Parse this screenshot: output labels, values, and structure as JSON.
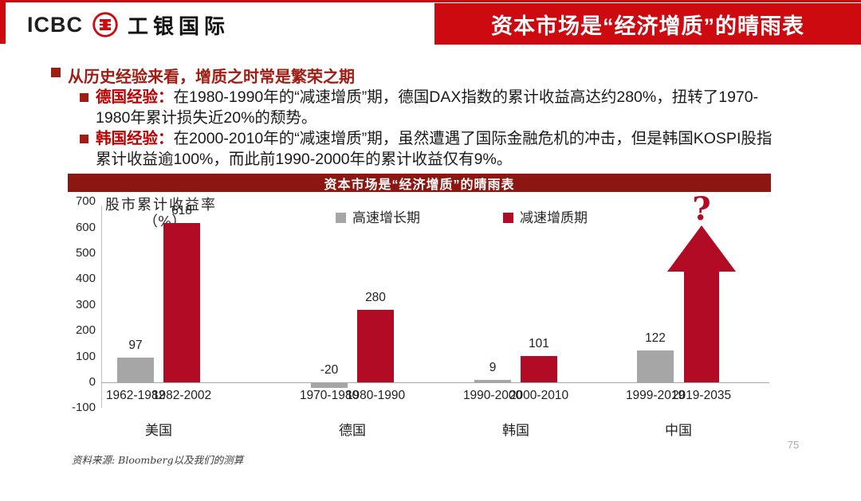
{
  "header": {
    "logo_icbc": "ICBC",
    "logo_cn": "工银国际",
    "banner_title": "资本市场是“经济增质”的晴雨表"
  },
  "bullets": {
    "main": "从历史经验来看，增质之时常是繁荣之期",
    "items": [
      {
        "lead": "德国经验：",
        "text": "在1980-1990年的“减速增质”期，德国DAX指数的累计收益高达约280%，扭转了1970-1980年累计损失近20%的颓势。"
      },
      {
        "lead": "韩国经验：",
        "text": "在2000-2010年的“减速增质”期，虽然遭遇了国际金融危机的冲击，但是韩国KOSPI股指累计收益逾100%，而此前1990-2000年的累计收益仅有9%。"
      }
    ]
  },
  "chart_data": {
    "type": "bar",
    "title": "资本市场是“经济增质”的晴雨表",
    "ylabel_line1": "股市累计收益率",
    "ylabel_line2": "（%）",
    "ylim": [
      -100,
      700
    ],
    "yticks": [
      700,
      600,
      500,
      400,
      300,
      200,
      100,
      0,
      -100
    ],
    "grid": false,
    "legend_position": "top",
    "legend": [
      {
        "name": "高速增长期",
        "color": "#a6a6a6"
      },
      {
        "name": "减速增质期",
        "color": "#b20b26"
      }
    ],
    "groups": [
      {
        "country": "美国",
        "bars": [
          {
            "period": "1962-1982",
            "series": "高速增长期",
            "value": 97
          },
          {
            "period": "1982-2002",
            "series": "减速增质期",
            "value": 618
          }
        ]
      },
      {
        "country": "德国",
        "bars": [
          {
            "period": "1970-1980",
            "series": "高速增长期",
            "value": -20
          },
          {
            "period": "1980-1990",
            "series": "减速增质期",
            "value": 280
          }
        ]
      },
      {
        "country": "韩国",
        "bars": [
          {
            "period": "1990-2000",
            "series": "高速增长期",
            "value": 9
          },
          {
            "period": "2000-2010",
            "series": "减速增质期",
            "value": 101
          }
        ]
      },
      {
        "country": "中国",
        "bars": [
          {
            "period": "1999-2019",
            "series": "高速增长期",
            "value": 122
          },
          {
            "period": "2019-2035",
            "series": "减速增质期",
            "value": null,
            "arrow": true,
            "annotation": "?"
          }
        ]
      }
    ]
  },
  "footer": {
    "source": "资料来源: Bloomberg以及我们的测算",
    "page_number": "75"
  },
  "colors": {
    "accent_red": "#cc0a10",
    "maroon": "#8c1712",
    "dark_red_text": "#a01d14",
    "lead_red": "#c00000",
    "bar_red": "#b20b26",
    "bar_gray": "#a6a6a6"
  }
}
